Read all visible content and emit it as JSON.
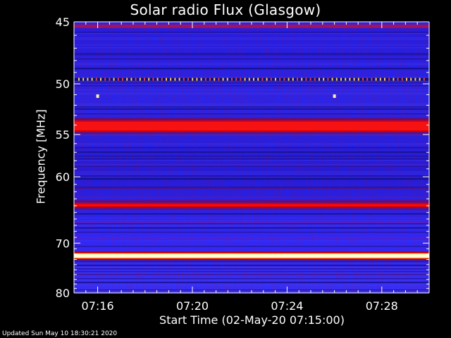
{
  "chart_data": {
    "type": "heatmap",
    "title": "Solar radio Flux (Glasgow)",
    "xlabel": "Start Time (02-May-20 07:15:00)",
    "ylabel": "Frequency [MHz]",
    "x_range": [
      "07:15:00",
      "07:30:00"
    ],
    "x_ticks": [
      "07:16",
      "07:20",
      "07:24",
      "07:28"
    ],
    "y_ticks": [
      45,
      50,
      55,
      60,
      70,
      80
    ],
    "y_range": [
      45,
      80
    ],
    "y_scale": "reciprocal",
    "colormap": [
      "#000000",
      "#1a1acc",
      "#2a2aff",
      "#cc0000",
      "#ff2020",
      "#ffffaa"
    ],
    "bands": [
      {
        "freq_mhz": 45.3,
        "level": "medium"
      },
      {
        "freq_mhz": 49.6,
        "level": "intermittent"
      },
      {
        "freq_mhz": 54.1,
        "level": "high"
      },
      {
        "freq_mhz": 63.9,
        "level": "high"
      },
      {
        "freq_mhz": 72.3,
        "level": "saturated"
      }
    ],
    "spots": [
      {
        "time": "07:16:00",
        "freq_mhz": 51.1
      },
      {
        "time": "07:26:00",
        "freq_mhz": 51.1
      }
    ]
  },
  "footer": "Updated Sun May 10 18:30:21 2020"
}
